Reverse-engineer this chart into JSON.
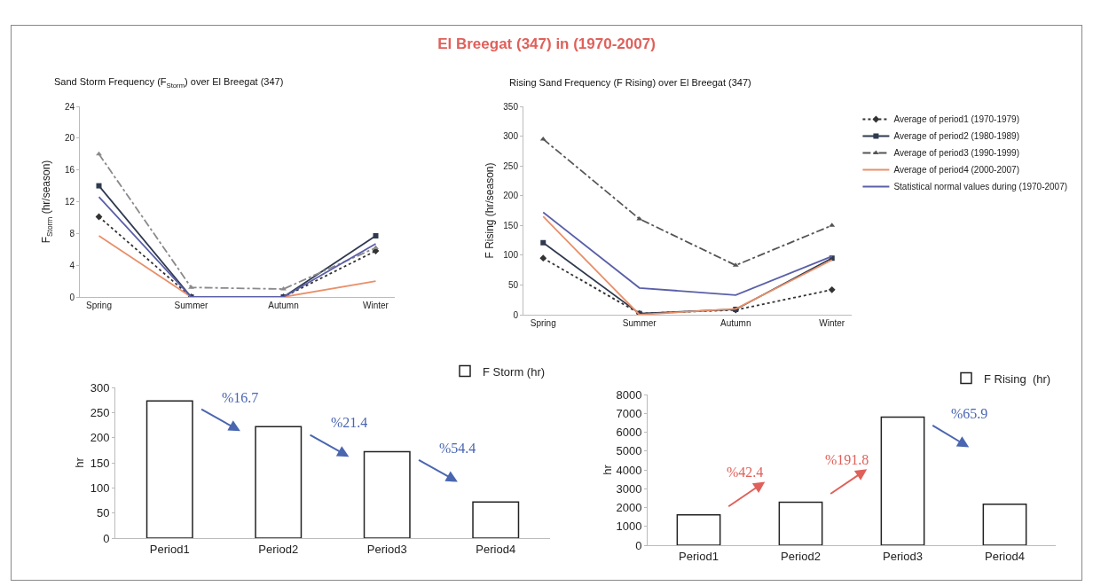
{
  "chart_data": [
    {
      "type": "line",
      "title": "Sand Storm Frequency (F$_{Storm}$) over El Breegat (347)",
      "ylabel": "F$_{Storm}$ (hr/season)",
      "annotations": [
        "El Breegat (347) in (1970-2007)"
      ],
      "categories": [
        "Spring",
        "Summer",
        "Autumn",
        "Winter"
      ],
      "ylim": [
        0,
        24
      ],
      "yticks": [
        0,
        4,
        8,
        12,
        16,
        20,
        24
      ],
      "grid": false,
      "legend": false,
      "series": [
        {
          "color": "#333333",
          "line_style": "dotted",
          "marker": "diamond",
          "values": [
            10.1,
            0,
            0,
            5.8
          ]
        },
        {
          "color": "#2f3a4f",
          "line_style": "solid",
          "marker": "square",
          "values": [
            14,
            0,
            0,
            7.7
          ]
        },
        {
          "color": "#8a8a8a",
          "line_style": "dashed",
          "marker": "triangle",
          "values": [
            18,
            1.2,
            1,
            6.2
          ]
        },
        {
          "color": "#e8906a",
          "line_style": "solid",
          "marker": "none",
          "values": [
            7.7,
            0,
            0,
            2
          ]
        },
        {
          "color": "#5a5fa8",
          "line_style": "solid",
          "marker": "none",
          "values": [
            12.6,
            0,
            0,
            6.7
          ]
        }
      ]
    },
    {
      "type": "line",
      "title": "Rising Sand Frequency (F Rising) over El Breegat (347)",
      "ylabel": "F Rising (hr/season)",
      "categories": [
        "Spring",
        "Summer",
        "Autumn",
        "Winter"
      ],
      "ylim": [
        0,
        350
      ],
      "yticks": [
        0,
        50,
        100,
        150,
        200,
        250,
        300,
        350
      ],
      "grid": false,
      "legend": "right",
      "series": [
        {
          "name": "Average of period1 (1970-1979)",
          "color": "#333333",
          "line_style": "dotted",
          "marker": "diamond",
          "values": [
            95,
            2,
            8,
            42
          ]
        },
        {
          "name": "Average of period2 (1980-1989)",
          "color": "#2f3a4f",
          "line_style": "solid",
          "marker": "square",
          "values": [
            121,
            2,
            9,
            95
          ]
        },
        {
          "name": "Average of period3 (1990-1999)",
          "color": "#555555",
          "line_style": "dashed",
          "marker": "triangle",
          "values": [
            295,
            161,
            83,
            150
          ]
        },
        {
          "name": "Average of period4 (2000-2007)",
          "color": "#e8906a",
          "line_style": "solid",
          "marker": "none",
          "values": [
            165,
            0,
            10,
            92
          ]
        },
        {
          "name": "Statistical normal values during (1970-2007)",
          "color": "#5a5fa8",
          "line_style": "solid",
          "marker": "none",
          "values": [
            172,
            45,
            33,
            98
          ]
        }
      ]
    },
    {
      "type": "bar",
      "ylabel": "hr",
      "annotations": [
        "%16.7",
        "%21.4",
        "%54.4"
      ],
      "categories": [
        "Period1",
        "Period2",
        "Period3",
        "Period4"
      ],
      "ylim": [
        0,
        300
      ],
      "yticks": [
        0,
        50,
        100,
        150,
        200,
        250,
        300
      ],
      "grid": false,
      "legend": "top right",
      "series": [
        {
          "name": "F Storm (hr)",
          "color": "#ffffff",
          "values": [
            273,
            222,
            172,
            72
          ]
        }
      ]
    },
    {
      "type": "bar",
      "ylabel": "hr",
      "annotations": [
        "%42.4",
        "%191.8",
        "%65.9"
      ],
      "categories": [
        "Period1",
        "Period2",
        "Period3",
        "Period4"
      ],
      "ylim": [
        0,
        8000
      ],
      "yticks": [
        0,
        1000,
        2000,
        3000,
        4000,
        5000,
        6000,
        7000,
        8000
      ],
      "grid": false,
      "legend": "top right",
      "series": [
        {
          "name": "F Rising  (hr)",
          "color": "#ffffff",
          "values": [
            1610,
            2280,
            6800,
            2180
          ]
        }
      ]
    }
  ]
}
